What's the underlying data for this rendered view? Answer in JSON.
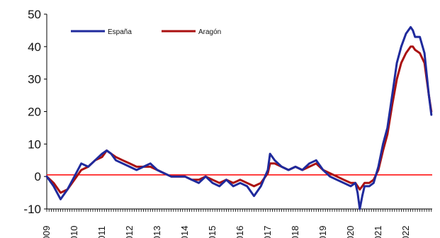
{
  "chart_data": {
    "type": "line",
    "title": "",
    "xlabel": "",
    "ylabel": "",
    "ylim": [
      -10,
      50
    ],
    "yticks": [
      -10,
      0,
      10,
      20,
      30,
      40,
      50
    ],
    "x_tick_labels": [
      "2009",
      "2010",
      "2011",
      "2012",
      "2013",
      "2014",
      "2015",
      "2016",
      "2017",
      "2018",
      "2019",
      "2020",
      "2021",
      "2022"
    ],
    "legend_position": "top-left",
    "grid": false,
    "reference_line": {
      "y": 0.5,
      "color": "#ff0000"
    },
    "series": [
      {
        "name": "España",
        "color": "#1f2a9c",
        "x": [
          2009.0,
          2009.25,
          2009.5,
          2009.75,
          2010.0,
          2010.25,
          2010.5,
          2010.75,
          2011.0,
          2011.17,
          2011.33,
          2011.5,
          2011.75,
          2012.0,
          2012.25,
          2012.5,
          2012.75,
          2013.0,
          2013.25,
          2013.5,
          2013.75,
          2014.0,
          2014.25,
          2014.5,
          2014.75,
          2015.0,
          2015.25,
          2015.5,
          2015.75,
          2016.0,
          2016.25,
          2016.5,
          2016.75,
          2017.0,
          2017.08,
          2017.25,
          2017.5,
          2017.75,
          2018.0,
          2018.25,
          2018.5,
          2018.75,
          2019.0,
          2019.25,
          2019.5,
          2019.75,
          2020.0,
          2020.17,
          2020.25,
          2020.33,
          2020.42,
          2020.5,
          2020.67,
          2020.83,
          2021.0,
          2021.17,
          2021.33,
          2021.5,
          2021.67,
          2021.83,
          2022.0,
          2022.17,
          2022.25,
          2022.33,
          2022.5,
          2022.67,
          2022.83,
          2022.92
        ],
        "values": [
          0,
          -3,
          -7,
          -4,
          0,
          4,
          3,
          5,
          7,
          8,
          7,
          5,
          4,
          3,
          2,
          3,
          4,
          2,
          1,
          0,
          0,
          0,
          -1,
          -2,
          0,
          -2,
          -3,
          -1,
          -3,
          -2,
          -3,
          -6,
          -3,
          2,
          7,
          5,
          3,
          2,
          3,
          2,
          4,
          5,
          2,
          0,
          -1,
          -2,
          -3,
          -2,
          -5,
          -10,
          -6,
          -3,
          -3,
          -2,
          3,
          10,
          15,
          25,
          35,
          40,
          44,
          46,
          45,
          43,
          43,
          38,
          25,
          19
        ]
      },
      {
        "name": "Aragón",
        "color": "#aa1010",
        "x": [
          2009.0,
          2009.25,
          2009.5,
          2009.75,
          2010.0,
          2010.25,
          2010.5,
          2010.75,
          2011.0,
          2011.17,
          2011.33,
          2011.5,
          2011.75,
          2012.0,
          2012.25,
          2012.5,
          2012.75,
          2013.0,
          2013.25,
          2013.5,
          2013.75,
          2014.0,
          2014.25,
          2014.5,
          2014.75,
          2015.0,
          2015.25,
          2015.5,
          2015.75,
          2016.0,
          2016.25,
          2016.5,
          2016.75,
          2017.0,
          2017.08,
          2017.25,
          2017.5,
          2017.75,
          2018.0,
          2018.25,
          2018.5,
          2018.75,
          2019.0,
          2019.25,
          2019.5,
          2019.75,
          2020.0,
          2020.17,
          2020.25,
          2020.33,
          2020.42,
          2020.5,
          2020.67,
          2020.83,
          2021.0,
          2021.17,
          2021.33,
          2021.5,
          2021.67,
          2021.83,
          2022.0,
          2022.17,
          2022.25,
          2022.33,
          2022.5,
          2022.67,
          2022.83,
          2022.92
        ],
        "values": [
          0,
          -2,
          -5,
          -4,
          -1,
          2,
          3,
          5,
          6,
          8,
          7,
          6,
          5,
          4,
          3,
          3,
          3,
          2,
          1,
          0,
          0,
          0,
          -1,
          -1,
          0,
          -1,
          -2,
          -1,
          -2,
          -1,
          -2,
          -3,
          -2,
          1,
          4,
          4,
          3,
          2,
          3,
          2,
          3,
          4,
          2,
          1,
          0,
          -1,
          -2,
          -2,
          -3,
          -4,
          -3,
          -2,
          -2,
          -1,
          2,
          8,
          13,
          22,
          30,
          35,
          38,
          40,
          40,
          39,
          38,
          35,
          25,
          20
        ]
      }
    ]
  }
}
